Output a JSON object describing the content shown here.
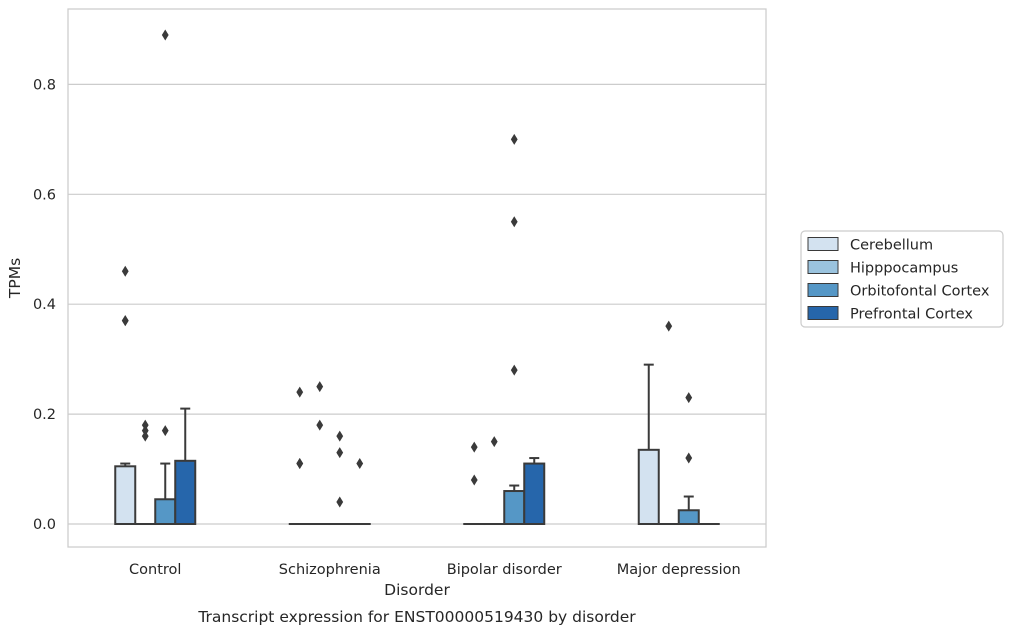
{
  "chart_data": {
    "type": "box",
    "title": "",
    "caption": "Transcript expression for ENST00000519430 by disorder",
    "xlabel": "Disorder",
    "ylabel": "TPMs",
    "categories": [
      "Control",
      "Schizophrenia",
      "Bipolar disorder",
      "Major depression"
    ],
    "ylim": [
      -0.044,
      0.94
    ],
    "yticks": [
      0.0,
      0.2,
      0.4,
      0.6,
      0.8
    ],
    "ytick_labels": [
      "0.0",
      "0.2",
      "0.4",
      "0.6",
      "0.8"
    ],
    "grid": "horizontal",
    "legend_position": "right",
    "series": [
      {
        "name": "Cerebellum",
        "color": "#d3e2f0",
        "boxes": [
          {
            "category": "Control",
            "q1": 0.0,
            "median": 0.0,
            "q3": 0.105,
            "whisker_low": 0.0,
            "whisker_high": 0.11,
            "outliers": [
              0.46,
              0.37,
              0.37
            ]
          },
          {
            "category": "Schizophrenia",
            "q1": 0.0,
            "median": 0.0,
            "q3": 0.0,
            "whisker_low": 0.0,
            "whisker_high": 0.0,
            "outliers": [
              0.24,
              0.11,
              0.11
            ]
          },
          {
            "category": "Bipolar disorder",
            "q1": 0.0,
            "median": 0.0,
            "q3": 0.0,
            "whisker_low": 0.0,
            "whisker_high": 0.0,
            "outliers": [
              0.14,
              0.08
            ]
          },
          {
            "category": "Major depression",
            "q1": 0.0,
            "median": 0.0,
            "q3": 0.135,
            "whisker_low": 0.0,
            "whisker_high": 0.29,
            "outliers": []
          }
        ]
      },
      {
        "name": "Hipppocampus",
        "color": "#9ac3de",
        "boxes": [
          {
            "category": "Control",
            "q1": 0.0,
            "median": 0.0,
            "q3": 0.0,
            "whisker_low": 0.0,
            "whisker_high": 0.0,
            "outliers": [
              0.18,
              0.17,
              0.16
            ]
          },
          {
            "category": "Schizophrenia",
            "q1": 0.0,
            "median": 0.0,
            "q3": 0.0,
            "whisker_low": 0.0,
            "whisker_high": 0.0,
            "outliers": [
              0.25,
              0.18
            ]
          },
          {
            "category": "Bipolar disorder",
            "q1": 0.0,
            "median": 0.0,
            "q3": 0.0,
            "whisker_low": 0.0,
            "whisker_high": 0.0,
            "outliers": [
              0.15
            ]
          },
          {
            "category": "Major depression",
            "q1": 0.0,
            "median": 0.0,
            "q3": 0.0,
            "whisker_low": 0.0,
            "whisker_high": 0.0,
            "outliers": [
              0.36
            ]
          }
        ]
      },
      {
        "name": "Orbitofontal Cortex",
        "color": "#5597c6",
        "boxes": [
          {
            "category": "Control",
            "q1": 0.0,
            "median": 0.0,
            "q3": 0.045,
            "whisker_low": 0.0,
            "whisker_high": 0.11,
            "outliers": [
              0.89,
              0.17
            ]
          },
          {
            "category": "Schizophrenia",
            "q1": 0.0,
            "median": 0.0,
            "q3": 0.0,
            "whisker_low": 0.0,
            "whisker_high": 0.0,
            "outliers": [
              0.16,
              0.13,
              0.04
            ]
          },
          {
            "category": "Bipolar disorder",
            "q1": 0.0,
            "median": 0.0,
            "q3": 0.06,
            "whisker_low": 0.0,
            "whisker_high": 0.07,
            "outliers": [
              0.7,
              0.55,
              0.28
            ]
          },
          {
            "category": "Major depression",
            "q1": 0.0,
            "median": 0.0,
            "q3": 0.025,
            "whisker_low": 0.0,
            "whisker_high": 0.05,
            "outliers": [
              0.23,
              0.12
            ]
          }
        ]
      },
      {
        "name": "Prefrontal Cortex",
        "color": "#2666ab",
        "boxes": [
          {
            "category": "Control",
            "q1": 0.0,
            "median": 0.0,
            "q3": 0.115,
            "whisker_low": 0.0,
            "whisker_high": 0.21,
            "outliers": []
          },
          {
            "category": "Schizophrenia",
            "q1": 0.0,
            "median": 0.0,
            "q3": 0.0,
            "whisker_low": 0.0,
            "whisker_high": 0.0,
            "outliers": [
              0.11
            ]
          },
          {
            "category": "Bipolar disorder",
            "q1": 0.0,
            "median": 0.0,
            "q3": 0.11,
            "whisker_low": 0.0,
            "whisker_high": 0.12,
            "outliers": []
          },
          {
            "category": "Major depression",
            "q1": 0.0,
            "median": 0.0,
            "q3": 0.0,
            "whisker_low": 0.0,
            "whisker_high": 0.0,
            "outliers": []
          }
        ]
      }
    ]
  }
}
